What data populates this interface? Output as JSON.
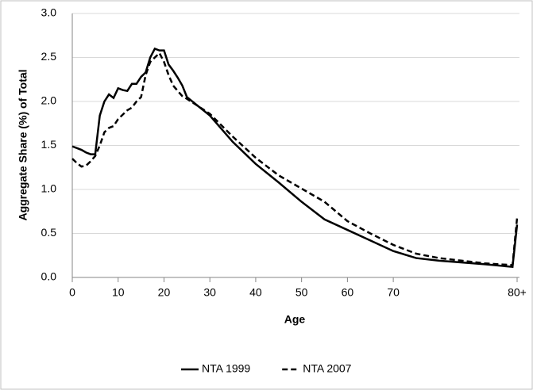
{
  "chart_data": {
    "type": "line",
    "x_label": "Age",
    "y_label": "Aggregate Share (%) of Total",
    "x": [
      0,
      1,
      2,
      3,
      4,
      5,
      6,
      7,
      8,
      9,
      10,
      11,
      12,
      13,
      14,
      15,
      16,
      17,
      18,
      19,
      20,
      21,
      22,
      23,
      24,
      25,
      30,
      35,
      40,
      45,
      50,
      55,
      60,
      65,
      70,
      75,
      80,
      85,
      90,
      96,
      97
    ],
    "series": [
      {
        "name": "NTA 1999",
        "color": "#000000",
        "dash": "solid",
        "values": [
          1.49,
          1.47,
          1.45,
          1.42,
          1.4,
          1.4,
          1.84,
          2.0,
          2.08,
          2.04,
          2.15,
          2.13,
          2.12,
          2.2,
          2.2,
          2.28,
          2.33,
          2.5,
          2.6,
          2.58,
          2.58,
          2.42,
          2.35,
          2.27,
          2.18,
          2.05,
          1.84,
          1.54,
          1.29,
          1.08,
          0.86,
          0.66,
          0.54,
          0.42,
          0.3,
          0.22,
          0.19,
          0.17,
          0.15,
          0.12,
          0.6
        ]
      },
      {
        "name": "NTA 2007",
        "color": "#000000",
        "dash": "dashed",
        "values": [
          1.35,
          1.3,
          1.26,
          1.27,
          1.32,
          1.38,
          1.5,
          1.65,
          1.7,
          1.72,
          1.8,
          1.85,
          1.9,
          1.93,
          2.0,
          2.05,
          2.3,
          2.45,
          2.5,
          2.55,
          2.45,
          2.3,
          2.18,
          2.12,
          2.06,
          2.03,
          1.86,
          1.6,
          1.36,
          1.16,
          1.01,
          0.86,
          0.64,
          0.5,
          0.37,
          0.27,
          0.22,
          0.19,
          0.16,
          0.14,
          0.68
        ]
      }
    ],
    "xlim": [
      0,
      97.5
    ],
    "xticks": [
      0,
      10,
      20,
      30,
      40,
      50,
      60,
      70,
      {
        "value": 97,
        "label": "80+"
      }
    ],
    "ylim": [
      0,
      3
    ],
    "yticks": [
      {
        "value": 0,
        "label": "0.0"
      },
      0.5,
      {
        "value": 1,
        "label": "1.0"
      },
      1.5,
      {
        "value": 2,
        "label": "2.0"
      },
      2.5,
      {
        "value": 3,
        "label": "3.0"
      }
    ],
    "grid": true,
    "legend": "bottom"
  }
}
